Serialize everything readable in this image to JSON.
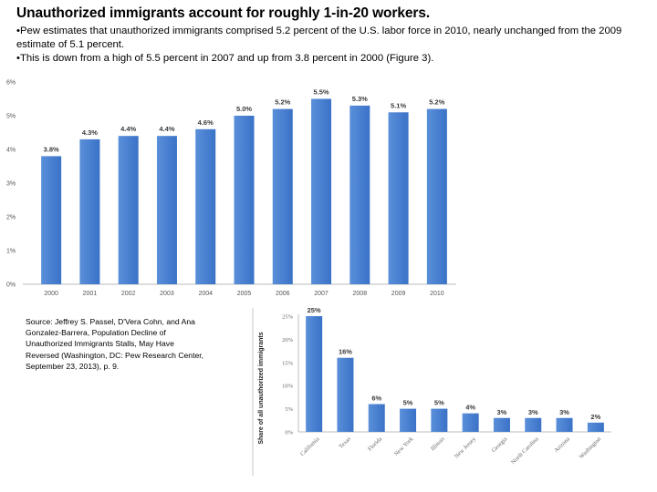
{
  "title": "Unauthorized immigrants account for roughly 1-in-20 workers.",
  "bullets": [
    "•Pew estimates that unauthorized immigrants comprised 5.2 percent of the U.S. labor force in 2010, nearly unchanged from the 2009 estimate of 5.1 percent.",
    "•This is down from a high of 5.5 percent in 2007 and up from 3.8 percent in 2000 (Figure 3)."
  ],
  "source": "Source: Jeffrey S. Passel, D'Vera Cohn, and Ana Gonzalez-Barrera, Population Decline of Unauthorized Immigrants Stalls, May Have Reversed (Washington, DC: Pew Research Center, September 23, 2013), p. 9.",
  "colors": {
    "bar": "#3a72c7",
    "bar_light": "#5a8fd9",
    "axis": "#bdbdbd"
  },
  "chart_data": [
    {
      "type": "bar",
      "categories": [
        "2000",
        "2001",
        "2002",
        "2003",
        "2004",
        "2005",
        "2006",
        "2007",
        "2008",
        "2009",
        "2010"
      ],
      "values": [
        3.8,
        4.3,
        4.4,
        4.4,
        4.6,
        5.0,
        5.2,
        5.5,
        5.3,
        5.1,
        5.2
      ],
      "data_labels": [
        "3.8%",
        "4.3%",
        "4.4%",
        "4.4%",
        "4.6%",
        "5.0%",
        "5.2%",
        "5.5%",
        "5.3%",
        "5.1%",
        "5.2%"
      ],
      "yticks": [
        "0%",
        "1%",
        "2%",
        "3%",
        "4%",
        "5%",
        "6%"
      ],
      "ylim": [
        0,
        6
      ],
      "grid": false,
      "title": "",
      "xlabel": "",
      "ylabel": ""
    },
    {
      "type": "bar",
      "categories": [
        "California",
        "Texas",
        "Florida",
        "New York",
        "Illinois",
        "New Jersey",
        "Georgia",
        "North Carolina",
        "Arizona",
        "Washington"
      ],
      "values": [
        25,
        16,
        6,
        5,
        5,
        4,
        3,
        3,
        3,
        2
      ],
      "data_labels": [
        "25%",
        "16%",
        "6%",
        "5%",
        "5%",
        "4%",
        "3%",
        "3%",
        "3%",
        "2%"
      ],
      "yticks": [
        "0%",
        "5%",
        "10%",
        "15%",
        "20%",
        "25%"
      ],
      "ylim": [
        0,
        25
      ],
      "grid": false,
      "title": "",
      "xlabel": "",
      "ylabel": "Share of all unauthorized immigrants"
    }
  ]
}
